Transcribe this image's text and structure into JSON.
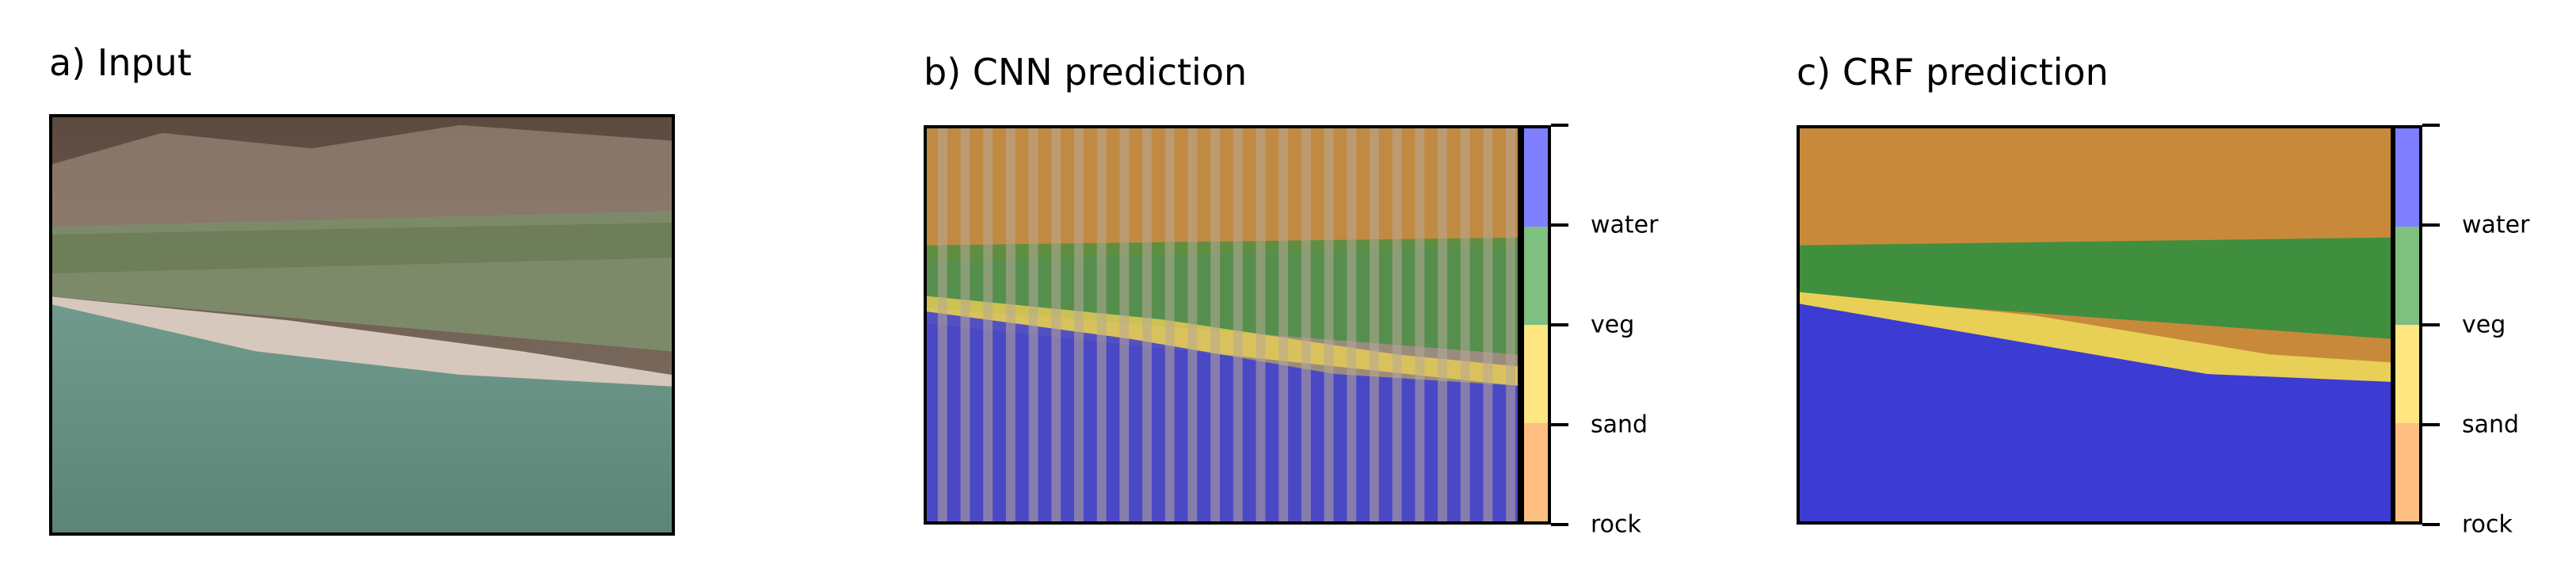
{
  "panels": {
    "input": {
      "title": "a) Input"
    },
    "cnn": {
      "title": "b) CNN prediction"
    },
    "crf": {
      "title": "c) CRF prediction"
    }
  },
  "colorbar": {
    "classes": [
      {
        "label": "water",
        "color": "#7f7fff"
      },
      {
        "label": "veg",
        "color": "#7fbf7f"
      },
      {
        "label": "sand",
        "color": "#ffe680"
      },
      {
        "label": "rock",
        "color": "#ffbf80"
      }
    ],
    "tick_labels": [
      "water",
      "veg",
      "sand",
      "rock"
    ]
  },
  "overlay_colors": {
    "water": "#3c3cd2",
    "veg": "#3f8f3f",
    "sand": "#e8cf55",
    "rock": "#c88a3a"
  },
  "chart_data": [
    {
      "type": "image",
      "title": "a) Input"
    },
    {
      "type": "heatmap",
      "title": "b) CNN prediction",
      "classes": [
        "water",
        "veg",
        "sand",
        "rock"
      ],
      "colorbar_ticks": [
        "water",
        "veg",
        "sand",
        "rock"
      ]
    },
    {
      "type": "heatmap",
      "title": "c) CRF prediction",
      "classes": [
        "water",
        "veg",
        "sand",
        "rock"
      ],
      "colorbar_ticks": [
        "water",
        "veg",
        "sand",
        "rock"
      ]
    }
  ]
}
